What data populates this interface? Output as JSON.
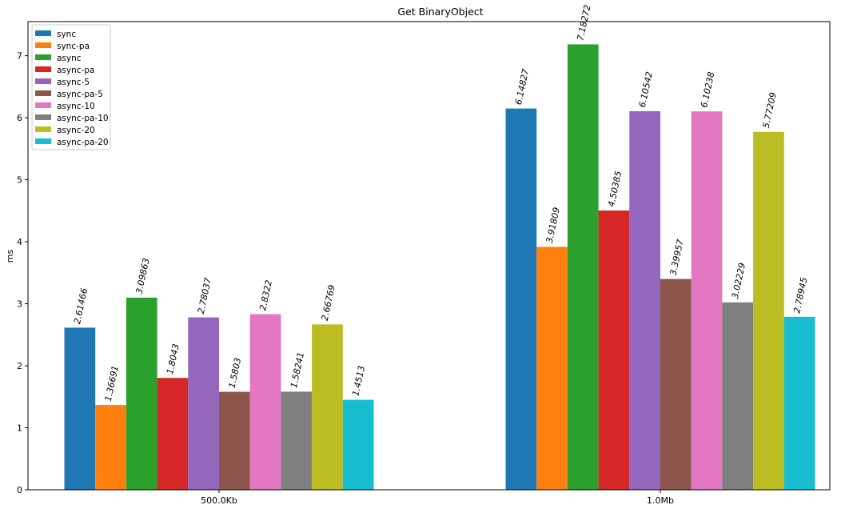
{
  "chart_data": {
    "type": "bar",
    "title": "Get BinaryObject",
    "xlabel": "",
    "ylabel": "ms",
    "categories": [
      "500.0Kb",
      "1.0Mb"
    ],
    "ylim": [
      0,
      7.55
    ],
    "yticks": [
      0,
      1,
      2,
      3,
      4,
      5,
      6,
      7
    ],
    "grid": false,
    "legend_position": "top-left",
    "series": [
      {
        "name": "sync",
        "color": "#1f77b4",
        "values": [
          2.61466,
          6.14827
        ],
        "labels": [
          "2.61466",
          "6.14827"
        ]
      },
      {
        "name": "sync-pa",
        "color": "#ff7f0e",
        "values": [
          1.36691,
          3.91809
        ],
        "labels": [
          "1.36691",
          "3.91809"
        ]
      },
      {
        "name": "async",
        "color": "#2ca02c",
        "values": [
          3.09863,
          7.18272
        ],
        "labels": [
          "3.09863",
          "7.18272"
        ]
      },
      {
        "name": "async-pa",
        "color": "#d62728",
        "values": [
          1.8043,
          4.50385
        ],
        "labels": [
          "1.8043",
          "4.50385"
        ]
      },
      {
        "name": "async-5",
        "color": "#9467bd",
        "values": [
          2.78037,
          6.10542
        ],
        "labels": [
          "2.78037",
          "6.10542"
        ]
      },
      {
        "name": "async-pa-5",
        "color": "#8c564b",
        "values": [
          1.5803,
          3.39957
        ],
        "labels": [
          "1.5803",
          "3.39957"
        ]
      },
      {
        "name": "async-10",
        "color": "#e377c2",
        "values": [
          2.8322,
          6.10238
        ],
        "labels": [
          "2.8322",
          "6.10238"
        ]
      },
      {
        "name": "async-pa-10",
        "color": "#7f7f7f",
        "values": [
          1.58241,
          3.02229
        ],
        "labels": [
          "1.58241",
          "3.02229"
        ]
      },
      {
        "name": "async-20",
        "color": "#bcbd22",
        "values": [
          2.66769,
          5.77209
        ],
        "labels": [
          "2.66769",
          "5.77209"
        ]
      },
      {
        "name": "async-pa-20",
        "color": "#17becf",
        "values": [
          1.4513,
          2.78945
        ],
        "labels": [
          "1.4513",
          "2.78945"
        ]
      }
    ]
  }
}
